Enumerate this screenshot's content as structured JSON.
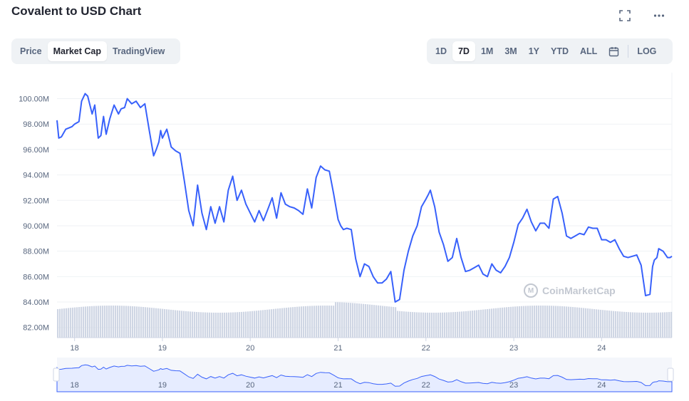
{
  "header": {
    "title": "Covalent to USD Chart"
  },
  "icons": {
    "fullscreen": "fullscreen-icon",
    "more": "more-icon",
    "calendar": "calendar-icon"
  },
  "chart_type_tabs": [
    {
      "label": "Price",
      "active": false
    },
    {
      "label": "Market Cap",
      "active": true
    },
    {
      "label": "TradingView",
      "active": false
    }
  ],
  "range_tabs": [
    {
      "label": "1D",
      "active": false
    },
    {
      "label": "7D",
      "active": true
    },
    {
      "label": "1M",
      "active": false
    },
    {
      "label": "3M",
      "active": false
    },
    {
      "label": "1Y",
      "active": false
    },
    {
      "label": "YTD",
      "active": false
    },
    {
      "label": "ALL",
      "active": false
    }
  ],
  "log_label": "LOG",
  "watermark": "CoinMarketCap",
  "colors": {
    "line": "#3861fb",
    "volume": "#cfd6e4",
    "navigator_fill": "#e6ecff",
    "grid": "#eff2f5"
  },
  "chart_data": {
    "type": "line",
    "title": "Covalent to USD Chart",
    "ylabel": "",
    "xlabel": "",
    "ylim": [
      81.2,
      101.6
    ],
    "y_ticks": [
      "100.00M",
      "98.00M",
      "96.00M",
      "94.00M",
      "92.00M",
      "90.00M",
      "88.00M",
      "86.00M",
      "84.00M",
      "82.00M"
    ],
    "y_tick_values": [
      100,
      98,
      96,
      94,
      92,
      90,
      88,
      86,
      84,
      82
    ],
    "x_ticks": [
      "18",
      "19",
      "20",
      "21",
      "22",
      "23",
      "24"
    ],
    "x_tick_values": [
      18,
      19,
      20,
      21,
      22,
      23,
      24
    ],
    "xlim": [
      17.8,
      24.8
    ],
    "grid": true,
    "series": [
      {
        "values_unit": "M USD",
        "x": [
          17.8,
          17.82,
          17.85,
          17.9,
          17.97,
          18.0,
          18.05,
          18.08,
          18.12,
          18.15,
          18.2,
          18.23,
          18.27,
          18.3,
          18.33,
          18.36,
          18.4,
          18.45,
          18.5,
          18.53,
          18.57,
          18.6,
          18.65,
          18.7,
          18.75,
          18.8,
          18.85,
          18.9,
          18.93,
          18.96,
          18.98,
          19.0,
          19.05,
          19.1,
          19.15,
          19.2,
          19.25,
          19.3,
          19.35,
          19.4,
          19.45,
          19.5,
          19.55,
          19.6,
          19.65,
          19.7,
          19.75,
          19.8,
          19.85,
          19.9,
          19.95,
          20.0,
          20.05,
          20.1,
          20.15,
          20.2,
          20.25,
          20.3,
          20.35,
          20.4,
          20.45,
          20.5,
          20.55,
          20.6,
          20.65,
          20.7,
          20.75,
          20.8,
          20.85,
          20.9,
          20.95,
          21.0,
          21.03,
          21.06,
          21.1,
          21.15,
          21.2,
          21.25,
          21.3,
          21.35,
          21.4,
          21.45,
          21.5,
          21.55,
          21.6,
          21.65,
          21.7,
          21.75,
          21.8,
          21.85,
          21.9,
          21.95,
          22.0,
          22.03,
          22.05,
          22.1,
          22.15,
          22.2,
          22.25,
          22.3,
          22.35,
          22.4,
          22.45,
          22.5,
          22.55,
          22.6,
          22.65,
          22.7,
          22.75,
          22.8,
          22.85,
          22.9,
          22.95,
          23.0,
          23.05,
          23.1,
          23.15,
          23.2,
          23.25,
          23.3,
          23.35,
          23.4,
          23.45,
          23.5,
          23.55,
          23.6,
          23.65,
          23.7,
          23.75,
          23.8,
          23.85,
          23.9,
          23.95,
          24.0,
          24.05,
          24.1,
          24.15,
          24.2,
          24.25,
          24.3,
          24.35,
          24.4,
          24.45,
          24.5,
          24.55,
          24.58,
          24.6,
          24.63,
          24.65,
          24.7,
          24.75,
          24.78,
          24.8
        ],
        "values": [
          98.3,
          96.9,
          97.0,
          97.6,
          97.8,
          98.0,
          98.2,
          99.8,
          100.4,
          100.2,
          98.8,
          99.5,
          96.9,
          97.1,
          98.6,
          97.2,
          98.4,
          99.5,
          98.8,
          99.2,
          99.3,
          100.0,
          99.6,
          99.8,
          99.3,
          99.6,
          97.5,
          95.5,
          96.0,
          96.6,
          97.5,
          96.9,
          97.6,
          96.2,
          95.9,
          95.7,
          93.5,
          91.2,
          90.0,
          93.2,
          91.0,
          89.7,
          91.5,
          90.2,
          91.5,
          90.3,
          92.8,
          93.9,
          92.0,
          92.8,
          91.7,
          91.0,
          90.3,
          91.2,
          90.4,
          91.3,
          92.2,
          90.6,
          92.6,
          91.7,
          91.5,
          91.4,
          91.2,
          90.9,
          92.9,
          91.4,
          93.8,
          94.7,
          94.4,
          94.3,
          92.5,
          90.5,
          90.0,
          89.7,
          89.8,
          89.7,
          87.4,
          86.0,
          87.0,
          86.8,
          86.0,
          85.5,
          85.5,
          85.8,
          86.4,
          84.0,
          84.2,
          86.5,
          88.0,
          89.2,
          90.0,
          91.5,
          92.1,
          92.5,
          92.8,
          91.5,
          89.5,
          88.5,
          87.2,
          87.5,
          89.0,
          87.5,
          86.4,
          86.5,
          86.7,
          86.9,
          86.2,
          86.0,
          87.0,
          86.5,
          86.3,
          86.8,
          87.5,
          88.7,
          90.1,
          90.6,
          91.3,
          90.3,
          89.6,
          90.2,
          90.2,
          89.8,
          92.1,
          92.3,
          91.0,
          89.2,
          89.0,
          89.2,
          89.4,
          89.3,
          89.9,
          89.8,
          89.8,
          88.9,
          88.9,
          88.7,
          88.9,
          88.2,
          87.6,
          87.5,
          87.6,
          87.7,
          86.9,
          84.5,
          84.6,
          86.8,
          87.3,
          87.5,
          88.2,
          88.0,
          87.5,
          87.5,
          87.6
        ]
      }
    ]
  }
}
